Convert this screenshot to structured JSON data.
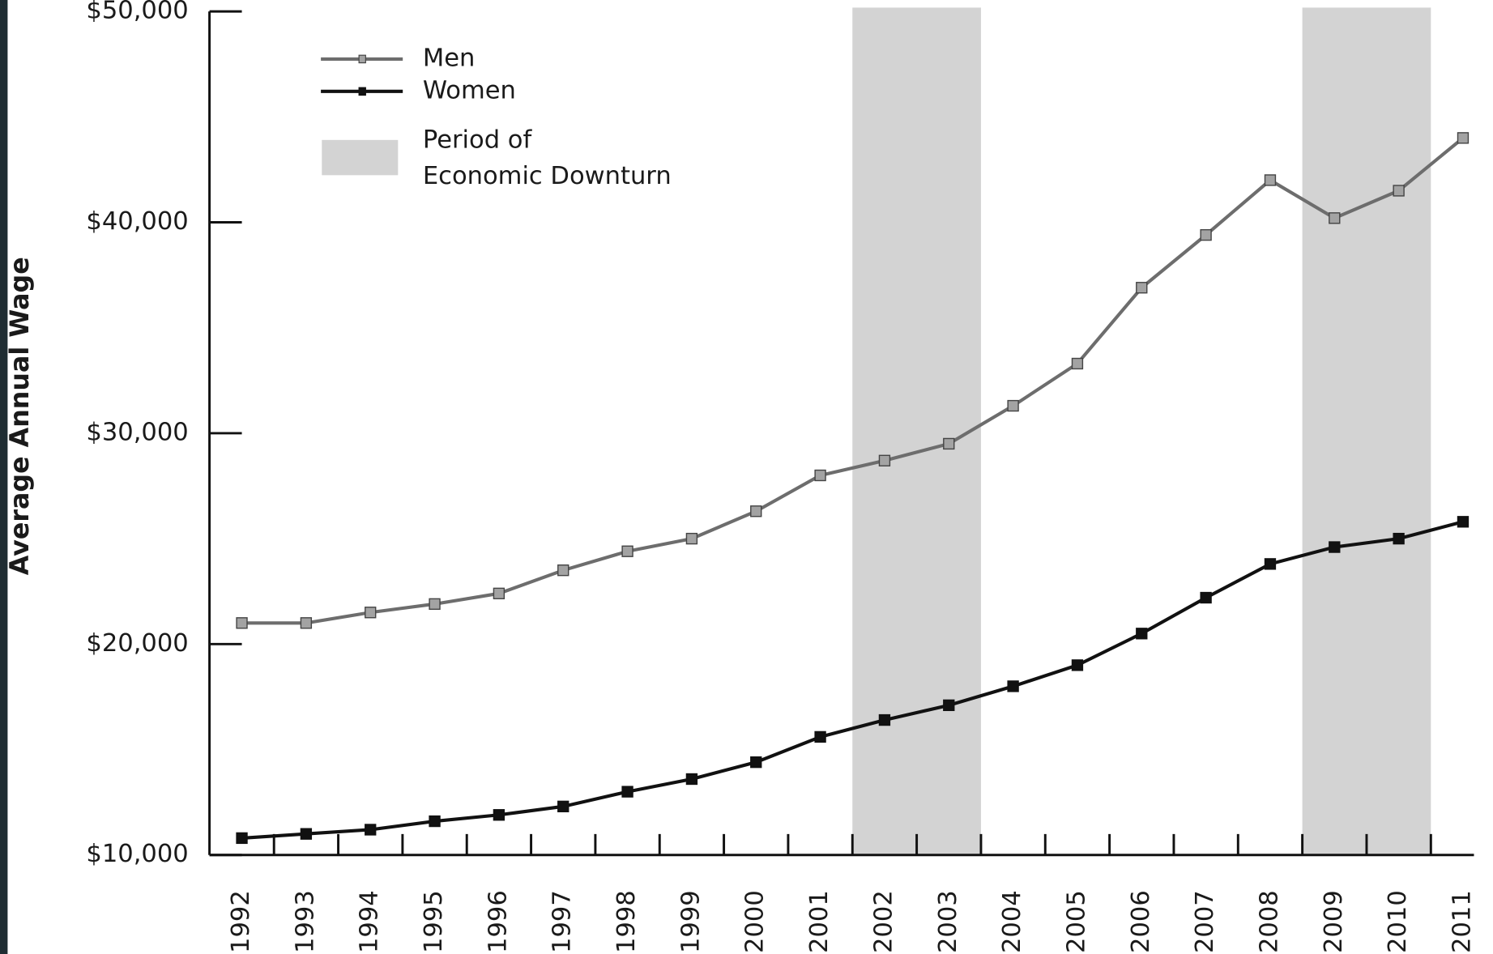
{
  "chart_data": {
    "type": "line",
    "ylabel": "Average Annual Wage",
    "categories": [
      "1992",
      "1993",
      "1994",
      "1995",
      "1996",
      "1997",
      "1998",
      "1999",
      "2000",
      "2001",
      "2002",
      "2003",
      "2004",
      "2005",
      "2006",
      "2007",
      "2008",
      "2009",
      "2010",
      "2011"
    ],
    "series": [
      {
        "name": "Men",
        "color": "#6d6d6d",
        "marker_color": "#a3a3a3",
        "values": [
          21000,
          21000,
          21500,
          21900,
          22400,
          23500,
          24400,
          25000,
          26300,
          28000,
          28700,
          29500,
          31300,
          33300,
          36900,
          39400,
          42000,
          40200,
          41500,
          44000
        ]
      },
      {
        "name": "Women",
        "color": "#111111",
        "marker_color": "#111111",
        "values": [
          10800,
          11000,
          11200,
          11600,
          11900,
          12300,
          13000,
          13600,
          14400,
          15600,
          16400,
          17100,
          18000,
          19000,
          20500,
          22200,
          23800,
          24600,
          25000,
          25800
        ]
      }
    ],
    "downturn_label": [
      "Period of",
      "Economic Downturn"
    ],
    "downturn_color": "#d3d3d3",
    "downturns": [
      {
        "start": "2002",
        "end": "2003"
      },
      {
        "start": "2009",
        "end": "2010"
      }
    ],
    "ylim": [
      10000,
      50000
    ],
    "yticks": [
      {
        "value": 10000,
        "label": "$10,000"
      },
      {
        "value": 20000,
        "label": "$20,000"
      },
      {
        "value": 30000,
        "label": "$30,000"
      },
      {
        "value": 40000,
        "label": "$40,000"
      },
      {
        "value": 50000,
        "label": "$50,000"
      }
    ],
    "legend": "upper left"
  }
}
